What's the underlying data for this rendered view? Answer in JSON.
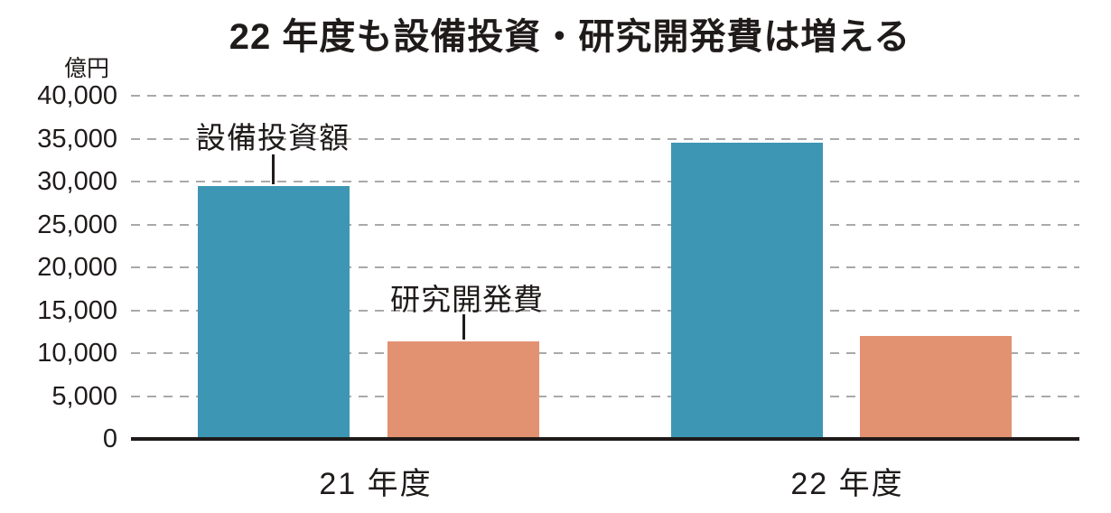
{
  "chart_data": {
    "type": "bar",
    "title": "22 年度も設備投資・研究開発費は増える",
    "unit_label": "億円",
    "categories": [
      "21 年度",
      "22 年度"
    ],
    "series": [
      {
        "name": "設備投資額",
        "color": "#3d97b4",
        "values": [
          29500,
          34500
        ]
      },
      {
        "name": "研究開発費",
        "color": "#e29171",
        "values": [
          11400,
          12000
        ]
      }
    ],
    "ylim": [
      0,
      40000
    ],
    "ytick_step": 5000,
    "ytick_labels": [
      "0",
      "5,000",
      "10,000",
      "15,000",
      "20,000",
      "25,000",
      "30,000",
      "35,000",
      "40,000"
    ],
    "xlabel": "",
    "ylabel": "億円",
    "grid": "horizontal-dashed",
    "legend": "none (series labeled by annotations with pointer lines above the 21年度 bars)",
    "colors": {
      "capex_bar": "#3d97b4",
      "rnd_bar": "#e29171",
      "gridline": "#a9a9a9",
      "axis": "#1f1b1a",
      "text": "#1f1b1a",
      "background": "#ffffff"
    }
  }
}
